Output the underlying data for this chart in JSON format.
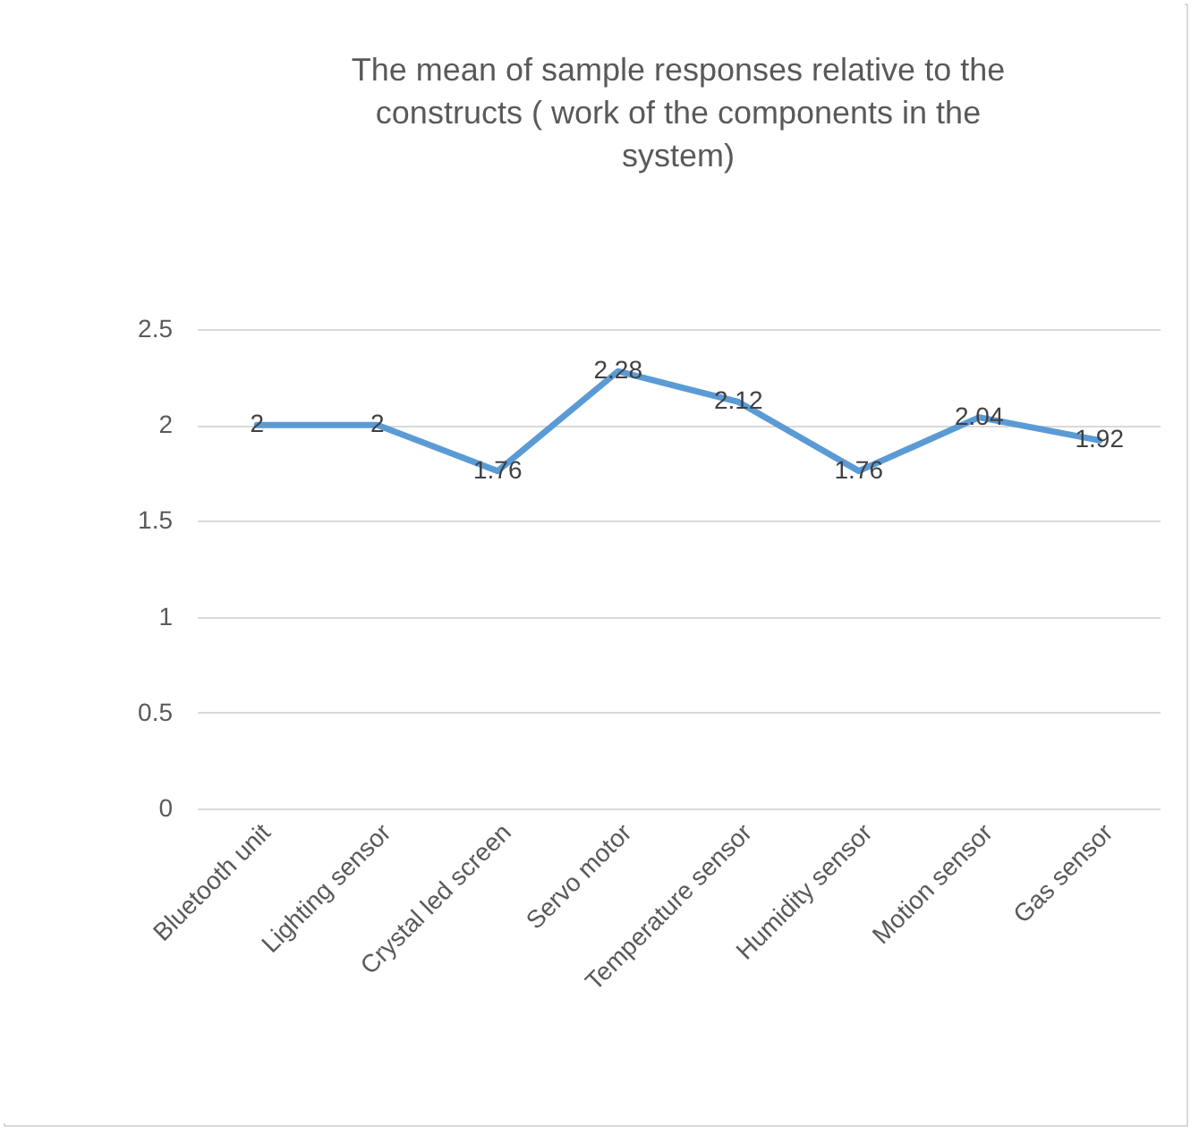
{
  "chart_data": {
    "type": "line",
    "title": "The mean of sample responses relative to the constructs ( work of the  components in the system)",
    "categories": [
      "Bluetooth  unit",
      "Lighting sensor",
      "Crystal led screen",
      "Servo motor",
      "Temperature sensor",
      "Humidity sensor",
      "Motion sensor",
      "Gas sensor"
    ],
    "series": [
      {
        "color": "#5b9bd5",
        "values": [
          2,
          2,
          1.76,
          2.28,
          2.12,
          1.76,
          2.04,
          1.92
        ]
      }
    ],
    "ylim": [
      0,
      2.5
    ],
    "yticks": [
      0,
      0.5,
      1,
      1.5,
      2,
      2.5
    ],
    "grid": "y",
    "data_labels": true,
    "marker": "none",
    "line_style": "solid"
  }
}
